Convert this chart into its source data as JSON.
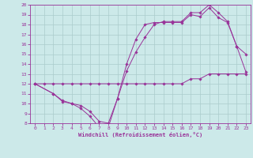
{
  "xlabel": "Windchill (Refroidissement éolien,°C)",
  "bg_color": "#cce9e9",
  "line_color": "#993399",
  "grid_color": "#aacccc",
  "xlim": [
    -0.5,
    23.5
  ],
  "ylim": [
    8,
    20
  ],
  "xticks": [
    0,
    1,
    2,
    3,
    4,
    5,
    6,
    7,
    8,
    9,
    10,
    11,
    12,
    13,
    14,
    15,
    16,
    17,
    18,
    19,
    20,
    21,
    22,
    23
  ],
  "yticks": [
    8,
    9,
    10,
    11,
    12,
    13,
    14,
    15,
    16,
    17,
    18,
    19,
    20
  ],
  "line1_x": [
    0,
    1,
    2,
    3,
    4,
    5,
    6,
    7,
    8,
    9,
    10,
    11,
    12,
    13,
    14,
    15,
    16,
    17,
    18,
    19,
    20,
    21,
    22,
    23
  ],
  "line1_y": [
    12,
    12,
    12,
    12,
    12,
    12,
    12,
    12,
    12,
    12,
    12,
    12,
    12,
    12,
    12,
    12,
    12,
    12.5,
    12.5,
    13,
    13,
    13,
    13,
    13
  ],
  "line2_x": [
    0,
    2,
    3,
    4,
    5,
    6,
    7,
    8,
    9,
    10,
    11,
    12,
    13,
    14,
    15,
    16,
    17,
    18,
    19,
    20,
    21,
    22,
    23
  ],
  "line2_y": [
    12,
    11,
    10.2,
    10.0,
    9.5,
    8.7,
    7.6,
    7.6,
    10.5,
    13.3,
    15.2,
    16.7,
    18.0,
    18.3,
    18.3,
    18.3,
    19.2,
    19.2,
    20.0,
    19.2,
    18.3,
    15.8,
    15.0
  ],
  "line3_x": [
    0,
    2,
    3,
    4,
    5,
    6,
    7,
    8,
    9,
    10,
    11,
    12,
    13,
    14,
    15,
    16,
    17,
    18,
    19,
    20,
    21,
    22,
    23
  ],
  "line3_y": [
    12,
    11,
    10.3,
    10.0,
    9.8,
    9.2,
    8.2,
    8.0,
    10.5,
    14.0,
    16.5,
    18.0,
    18.2,
    18.2,
    18.2,
    18.2,
    19.0,
    18.8,
    19.7,
    18.7,
    18.2,
    15.8,
    13.2
  ]
}
